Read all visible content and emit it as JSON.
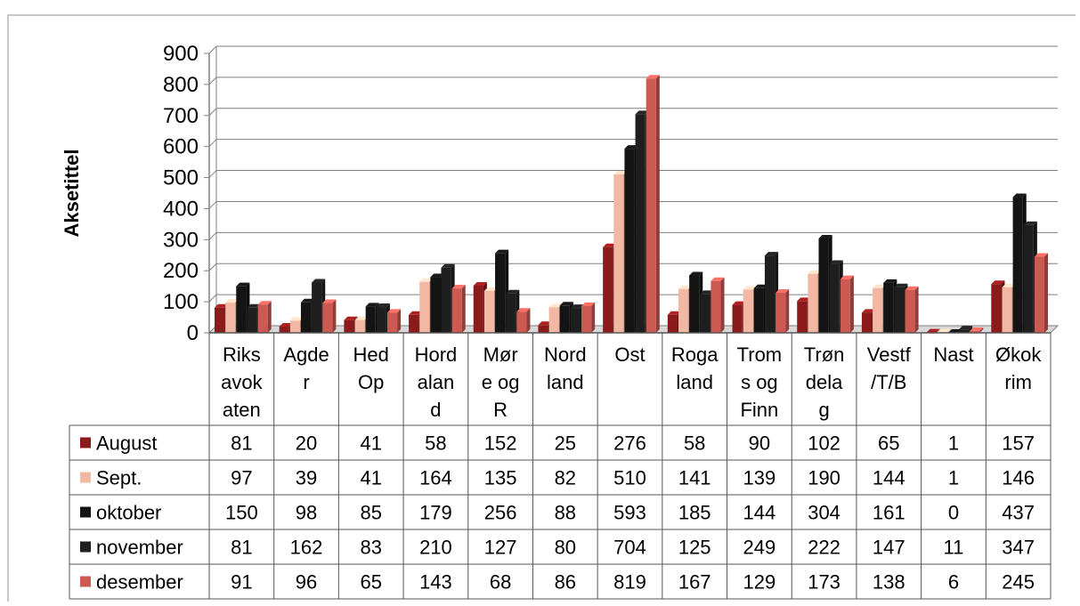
{
  "chart_data": {
    "type": "bar",
    "title": "",
    "ylabel": "Aksetittel",
    "xlabel": "",
    "ylim": [
      0,
      900
    ],
    "yticks": [
      0,
      100,
      200,
      300,
      400,
      500,
      600,
      700,
      800,
      900
    ],
    "grid": true,
    "legend": "table-left",
    "categories": [
      [
        "Riks",
        "avok",
        "aten"
      ],
      [
        "Agde",
        "r"
      ],
      [
        "Hed",
        "Op"
      ],
      [
        "Hord",
        "alan",
        "d"
      ],
      [
        "Mør",
        "e og",
        "R"
      ],
      [
        "Nord",
        "land"
      ],
      [
        "Ost"
      ],
      [
        "Roga",
        "land"
      ],
      [
        "Trom",
        "s og",
        "Finn"
      ],
      [
        "Trøn",
        "dela",
        "g"
      ],
      [
        "Vestf",
        "/T/B"
      ],
      [
        "Nast"
      ],
      [
        "Økok",
        "rim"
      ]
    ],
    "series": [
      {
        "name": "August",
        "color": "#8b1a1a",
        "values": [
          81,
          20,
          41,
          58,
          152,
          25,
          276,
          58,
          90,
          102,
          65,
          1,
          157
        ]
      },
      {
        "name": "Sept.",
        "color": "#f2b8a3",
        "values": [
          97,
          39,
          41,
          164,
          135,
          82,
          510,
          141,
          139,
          190,
          144,
          1,
          146
        ]
      },
      {
        "name": "oktober",
        "color": "#141414",
        "values": [
          150,
          98,
          85,
          179,
          256,
          88,
          593,
          185,
          144,
          304,
          161,
          0,
          437
        ]
      },
      {
        "name": "november",
        "color": "#1e1e1e",
        "values": [
          81,
          162,
          83,
          210,
          127,
          80,
          704,
          125,
          249,
          222,
          147,
          11,
          347
        ]
      },
      {
        "name": "desember",
        "color": "#cc5a52",
        "values": [
          91,
          96,
          65,
          143,
          68,
          86,
          819,
          167,
          129,
          173,
          138,
          6,
          245
        ]
      }
    ]
  }
}
